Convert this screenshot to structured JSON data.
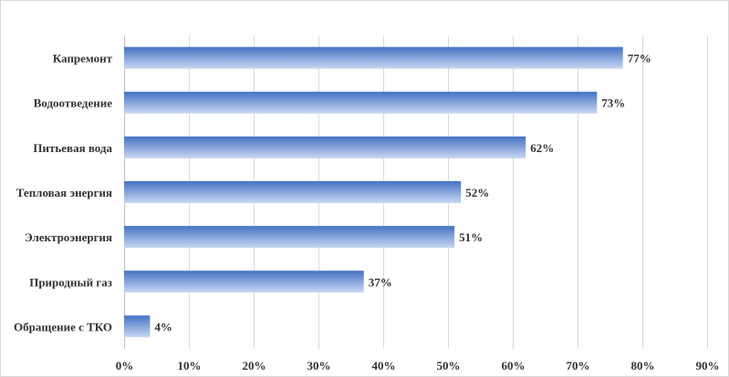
{
  "chart_data": {
    "type": "bar",
    "orientation": "horizontal",
    "categories": [
      "Капремонт",
      "Водоотведение",
      "Питьевая вода",
      "Тепловая энергия",
      "Электроэнергия",
      "Природный газ",
      "Обращение с ТКО"
    ],
    "values": [
      77,
      73,
      62,
      52,
      51,
      37,
      4
    ],
    "value_labels": [
      "77%",
      "73%",
      "62%",
      "52%",
      "51%",
      "37%",
      "4%"
    ],
    "xlim": [
      0,
      90
    ],
    "xticks": [
      0,
      10,
      20,
      30,
      40,
      50,
      60,
      70,
      80,
      90
    ],
    "xtick_labels": [
      "0%",
      "10%",
      "20%",
      "30%",
      "40%",
      "50%",
      "60%",
      "70%",
      "80%",
      "90%"
    ],
    "grid": true,
    "bar_color": "#4472c4",
    "bar_color_light": "#c9d7f2",
    "title": "",
    "xlabel": "",
    "ylabel": ""
  }
}
